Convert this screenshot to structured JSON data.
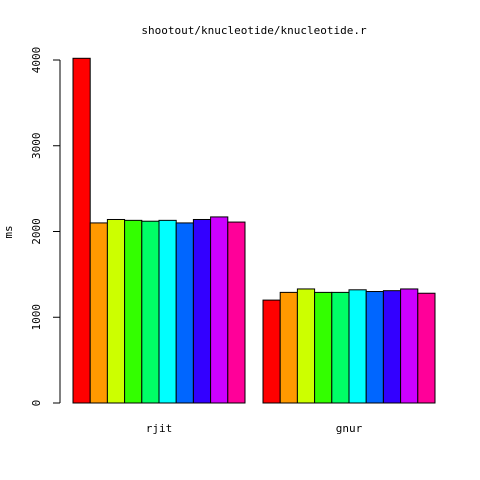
{
  "chart_data": {
    "type": "bar",
    "title": "shootout/knucleotide/knucleotide.r",
    "xlabel": "",
    "ylabel": "ms",
    "ylim": [
      0,
      4000
    ],
    "yticks": [
      0,
      1000,
      2000,
      3000,
      4000
    ],
    "categories": [
      "rjit",
      "gnur"
    ],
    "bar_colors": [
      "#FF0000",
      "#FF9900",
      "#CCFF00",
      "#33FF00",
      "#00FF66",
      "#00FFFF",
      "#0066FF",
      "#3300FF",
      "#CC00FF",
      "#FF0099"
    ],
    "series": [
      {
        "values": [
          4020,
          1200
        ]
      },
      {
        "values": [
          2100,
          1290
        ]
      },
      {
        "values": [
          2140,
          1330
        ]
      },
      {
        "values": [
          2130,
          1290
        ]
      },
      {
        "values": [
          2120,
          1290
        ]
      },
      {
        "values": [
          2130,
          1320
        ]
      },
      {
        "values": [
          2100,
          1300
        ]
      },
      {
        "values": [
          2140,
          1310
        ]
      },
      {
        "values": [
          2170,
          1330
        ]
      },
      {
        "values": [
          2110,
          1280
        ]
      }
    ],
    "grid": false,
    "legend": "none"
  }
}
